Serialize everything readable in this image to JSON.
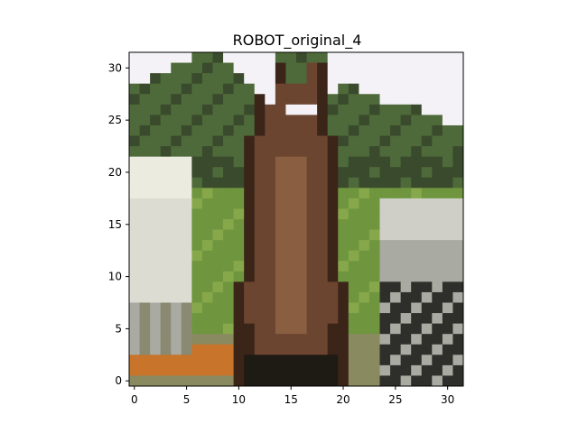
{
  "figure": {
    "title": "ROBOT_original_4",
    "xaxis": {
      "ticks": [
        "0",
        "5",
        "10",
        "15",
        "20",
        "25",
        "30"
      ],
      "tick_values": [
        0,
        5,
        10,
        15,
        20,
        25,
        30
      ],
      "range": [
        -0.5,
        31.5
      ]
    },
    "yaxis": {
      "ticks": [
        "0",
        "5",
        "10",
        "15",
        "20",
        "25",
        "30"
      ],
      "tick_values": [
        0,
        5,
        10,
        15,
        20,
        25,
        30
      ],
      "range": [
        31.5,
        -0.5
      ],
      "inverted": true
    },
    "image": {
      "subject": "low-resolution 32x32 photo of a brown horse facing the viewer, green grass and trees behind, with white/grey animals on both sides",
      "pixel_grid": [
        32,
        32
      ],
      "palette": {
        "sky": "#f4f2f6",
        "tree_dark": "#3a4a2c",
        "tree_mid": "#4e6a3a",
        "grass": "#6f963f",
        "grass_light": "#86a84a",
        "horse_dark": "#3b2418",
        "horse": "#6b4530",
        "horse_light": "#8a5e40",
        "white_animal": "#dcdcd2",
        "grey_animal": "#a9aaa2",
        "dark_animal": "#2e2e2a",
        "orange_ground": "#c8742a",
        "ground": "#8a8a60"
      }
    }
  }
}
